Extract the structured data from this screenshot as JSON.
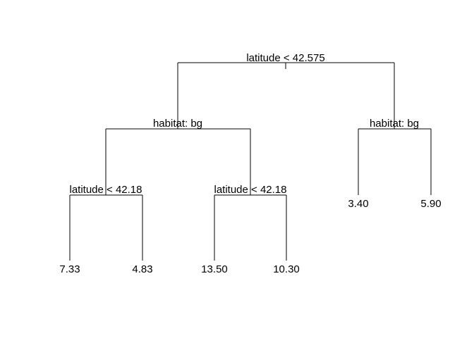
{
  "tree": {
    "root": {
      "split": "latitude < 42.575",
      "left": {
        "split": "habitat: bg",
        "left": {
          "split": "latitude < 42.18",
          "left_leaf": "7.33",
          "right_leaf": "4.83"
        },
        "right": {
          "split": "latitude < 42.18",
          "left_leaf": "13.50",
          "right_leaf": "10.30"
        }
      },
      "right": {
        "split": "habitat: bg",
        "left_leaf": "3.40",
        "right_leaf": "5.90"
      }
    }
  }
}
